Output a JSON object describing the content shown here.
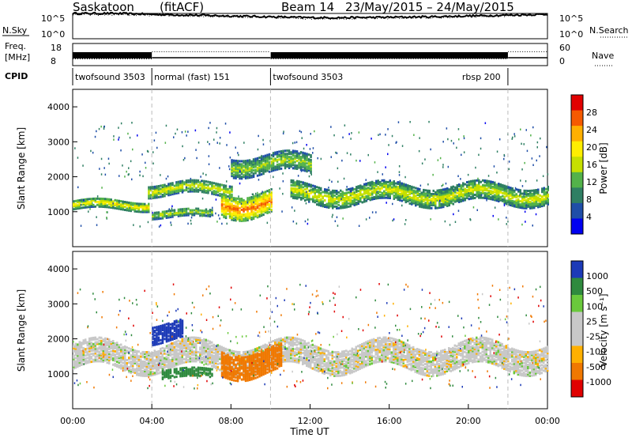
{
  "header": {
    "site": "Saskatoon",
    "product": "(fitACF)",
    "beam_label": "Beam 14",
    "date_range": "23/May/2015 – 24/May/2015"
  },
  "panels": {
    "nsky": {
      "label": "N.Sky",
      "right_label": "N.Search",
      "left_ticks": [
        "10^5",
        "10^0"
      ],
      "right_ticks": [
        "10^5",
        "10^0"
      ]
    },
    "freq": {
      "label_top": "Freq.",
      "label_bottom": "[MHz]",
      "right_label": "Nave",
      "left_ticks": [
        "18",
        "8"
      ],
      "right_ticks": [
        "60",
        "0"
      ]
    },
    "cpid": {
      "label": "CPID",
      "segments": [
        {
          "text": "twofsound 3503",
          "start_h": 0
        },
        {
          "text": "normal (fast) 151",
          "start_h": 4
        },
        {
          "text": "twofsound 3503",
          "start_h": 10
        },
        {
          "text": "rbsp 200",
          "start_h": 22
        }
      ]
    }
  },
  "colorbars": {
    "power": {
      "title": "Power [dB]",
      "labels": [
        "28",
        "24",
        "20",
        "16",
        "12",
        "8",
        "4"
      ],
      "colors": [
        "#e10000",
        "#f55a00",
        "#ffb000",
        "#ffee00",
        "#c6e000",
        "#53b24a",
        "#2f7f63",
        "#1f4ea8",
        "#0000f0"
      ]
    },
    "velocity": {
      "title": "Velocity [m s⁻¹]",
      "labels": [
        "1000",
        "500",
        "100",
        "25",
        "-25",
        "-100",
        "-500",
        "-1000"
      ],
      "colors": [
        "#1c3ab7",
        "#2f8a3e",
        "#6ac93c",
        "#c8c8c8",
        "#c8c8c8",
        "#ffb000",
        "#f07800",
        "#e00000"
      ]
    }
  },
  "chart_data": [
    {
      "type": "line",
      "name": "N.Sky / N.Search",
      "x": [
        0,
        2,
        4,
        6,
        8,
        10,
        12,
        14,
        16,
        18,
        20,
        22,
        24
      ],
      "series": [
        {
          "name": "N.Sky",
          "values": [
            6.0,
            6.0,
            5.8,
            5.6,
            5.4,
            5.2,
            5.0,
            5.0,
            5.1,
            5.2,
            5.4,
            5.6,
            5.8
          ]
        },
        {
          "name": "N.Search",
          "values": [
            5.8,
            5.7,
            5.6,
            5.4,
            5.2,
            5.0,
            4.8,
            4.8,
            4.9,
            5.0,
            5.2,
            5.4,
            5.6
          ]
        }
      ],
      "ylim": [
        0,
        6
      ],
      "xlim": [
        0,
        24
      ]
    },
    {
      "type": "line",
      "name": "Freq / Nave",
      "x": [
        0,
        4,
        4.01,
        10,
        10.01,
        22,
        22.01,
        24
      ],
      "series": [
        {
          "name": "Freq",
          "values": [
            18,
            18,
            8,
            8,
            18,
            18,
            8,
            8
          ]
        },
        {
          "name": "Nave",
          "values": [
            15,
            15,
            40,
            40,
            15,
            15,
            40,
            40
          ]
        }
      ],
      "xlim": [
        0,
        24
      ]
    },
    {
      "type": "heatmap",
      "title": "Power",
      "xlabel": "",
      "ylabel": "Slant Range [km]",
      "xlim": [
        0,
        24
      ],
      "ylim": [
        0,
        4500
      ],
      "yticks": [
        "1000",
        "2000",
        "3000",
        "4000"
      ],
      "bands": [
        {
          "x_start": 0,
          "x_end": 3.8,
          "y_center": 1200,
          "half_width": 130,
          "level": 20
        },
        {
          "x_start": 3.8,
          "x_end": 8,
          "y_center": 1650,
          "half_width": 170,
          "level": 18
        },
        {
          "x_start": 4,
          "x_end": 7,
          "y_center": 950,
          "half_width": 110,
          "level": 16
        },
        {
          "x_start": 7.5,
          "x_end": 10,
          "y_center": 1250,
          "half_width": 320,
          "level": 26
        },
        {
          "x_start": 8,
          "x_end": 12,
          "y_center": 2350,
          "half_width": 250,
          "level": 16
        },
        {
          "x_start": 11,
          "x_end": 24,
          "y_center": 1500,
          "half_width": 250,
          "level": 18
        }
      ],
      "cpid_boundaries_h": [
        4,
        10,
        22
      ]
    },
    {
      "type": "heatmap",
      "title": "Velocity",
      "xlabel": "Time UT",
      "ylabel": "Slant Range [km]",
      "xlim": [
        0,
        24
      ],
      "ylim": [
        0,
        4500
      ],
      "yticks": [
        "1000",
        "2000",
        "3000",
        "4000"
      ],
      "xtick_labels": [
        "00:00",
        "04:00",
        "08:00",
        "12:00",
        "16:00",
        "20:00",
        "00:00"
      ],
      "patches": [
        {
          "x_start": 0,
          "x_end": 24,
          "y_center": 1500,
          "half_width": 350,
          "velocity": 0
        },
        {
          "x_start": 4.5,
          "x_end": 7,
          "y_center": 1000,
          "half_width": 120,
          "velocity": 150
        },
        {
          "x_start": 7.5,
          "x_end": 10.5,
          "y_center": 1350,
          "half_width": 350,
          "velocity": -400
        },
        {
          "x_start": 4,
          "x_end": 5.5,
          "y_center": 2200,
          "half_width": 250,
          "velocity": 600
        }
      ],
      "cpid_boundaries_h": [
        4,
        10,
        22
      ]
    }
  ]
}
